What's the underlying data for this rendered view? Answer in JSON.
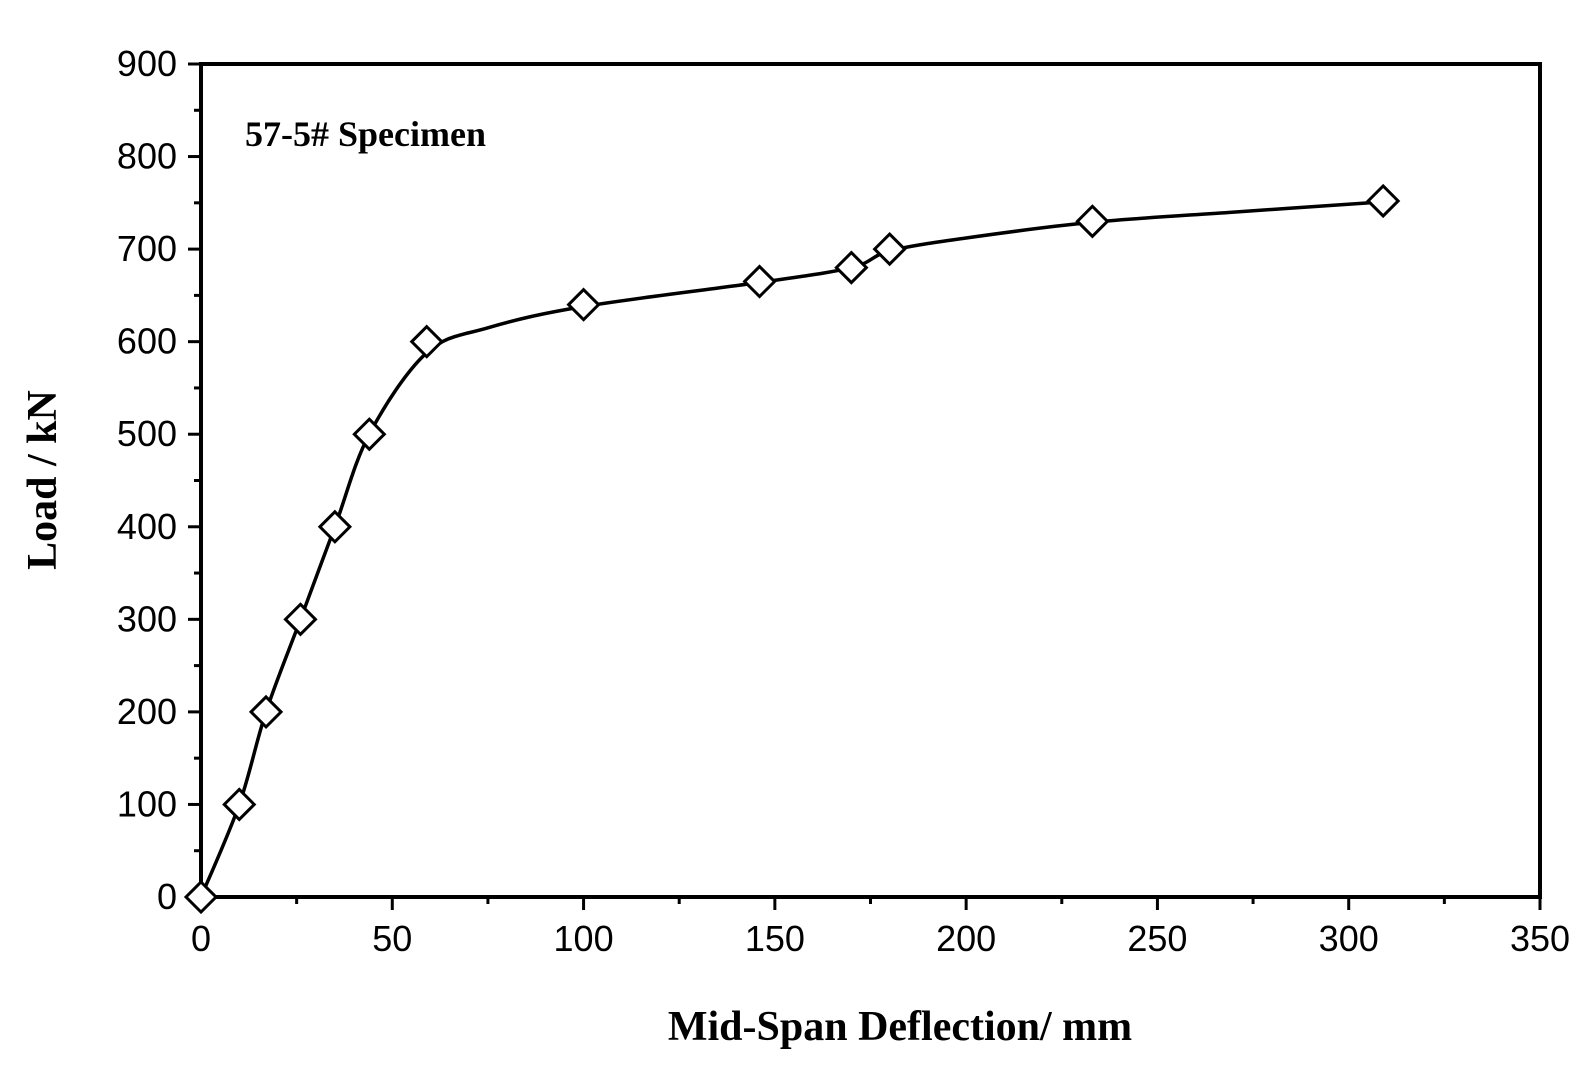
{
  "chart_data": {
    "type": "scatter",
    "annotation": "57-5# Specimen",
    "xlabel": "Mid-Span Deflection/ mm",
    "ylabel": "Load / kN",
    "xlim": [
      0,
      350
    ],
    "ylim": [
      0,
      900
    ],
    "x_ticks": [
      0,
      50,
      100,
      150,
      200,
      250,
      300,
      350
    ],
    "y_ticks": [
      0,
      100,
      200,
      300,
      400,
      500,
      600,
      700,
      800,
      900
    ],
    "grid": false,
    "marker": "open-diamond",
    "series": [
      {
        "points": [
          [
            0,
            0
          ],
          [
            10,
            100
          ],
          [
            17,
            200
          ],
          [
            26,
            300
          ],
          [
            35,
            400
          ],
          [
            44,
            500
          ],
          [
            59,
            600
          ],
          [
            100,
            640
          ],
          [
            146,
            665
          ],
          [
            170,
            680
          ],
          [
            180,
            700
          ],
          [
            233,
            730
          ],
          [
            309,
            752
          ]
        ]
      }
    ],
    "curve": [
      [
        0,
        0
      ],
      [
        10,
        100
      ],
      [
        17,
        200
      ],
      [
        26,
        300
      ],
      [
        35,
        400
      ],
      [
        44,
        500
      ],
      [
        59,
        588
      ],
      [
        75,
        615
      ],
      [
        100,
        638
      ],
      [
        146,
        664
      ],
      [
        170,
        680
      ],
      [
        180,
        698
      ],
      [
        200,
        712
      ],
      [
        233,
        729
      ],
      [
        270,
        740
      ],
      [
        309,
        751
      ]
    ]
  }
}
